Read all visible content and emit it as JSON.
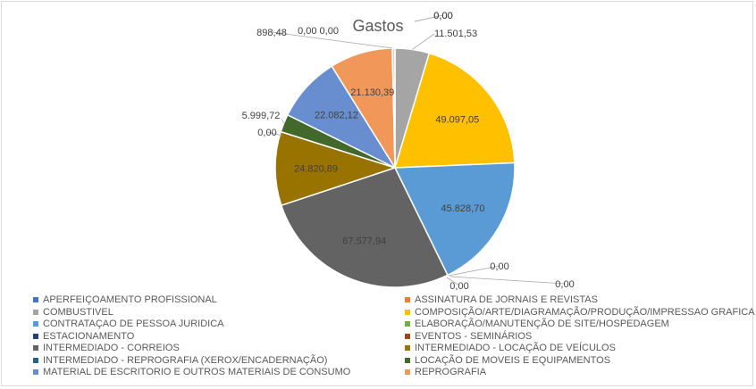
{
  "chart_data": {
    "type": "pie",
    "title": "Gastos",
    "slices": [
      {
        "label": "APERFEIÇOAMENTO PROFISSIONAL",
        "value": 0,
        "display": "0,00",
        "color": "#4472C4"
      },
      {
        "label": "ASSINATURA DE JORNAIS E REVISTAS",
        "value": 0,
        "display": "0,00",
        "color": "#ED7D31"
      },
      {
        "label": "COMBUSTIVEL",
        "value": 11501.53,
        "display": "11.501,53",
        "color": "#A5A5A5"
      },
      {
        "label": "COMPOSIÇÃO/ARTE/DIAGRAMAÇÃO/PRODUÇÃO/IMPRESSAO GRAFICA",
        "value": 49097.05,
        "display": "49.097,05",
        "color": "#FFC000"
      },
      {
        "label": "CONTRATAÇAO DE PESSOA JURIDICA",
        "value": 45828.7,
        "display": "45.828,70",
        "color": "#5B9BD5"
      },
      {
        "label": "ELABORAÇÃO/MANUTENÇÃO DE SITE/HOSPEDAGEM",
        "value": 0,
        "display": "0,00",
        "color": "#70AD47"
      },
      {
        "label": "ESTACIONAMENTO",
        "value": 0,
        "display": "0,00",
        "color": "#264478"
      },
      {
        "label": "EVENTOS - SEMINÁRIOS",
        "value": 0,
        "display": "0,00",
        "color": "#9E480E"
      },
      {
        "label": "INTERMEDIADO - CORREIOS",
        "value": 67577.94,
        "display": "67.577,94",
        "color": "#636363"
      },
      {
        "label": "INTERMEDIADO - LOCAÇÃO DE VEÍCULOS",
        "value": 24820.89,
        "display": "24.820,89",
        "color": "#997300"
      },
      {
        "label": "INTERMEDIADO - REPROGRAFIA (XEROX/ENCADERNAÇÃO)",
        "value": 0,
        "display": "0,00",
        "color": "#255E91"
      },
      {
        "label": "LOCAÇÃO DE MOVEIS E EQUIPAMENTOS",
        "value": 5999.72,
        "display": "5.999,72",
        "color": "#43682B"
      },
      {
        "label": "MATERIAL DE ESCRITORIO E OUTROS MATERIAIS DE CONSUMO",
        "value": 22082.12,
        "display": "22.082,12",
        "color": "#698ED0"
      },
      {
        "label": "REPROGRAFIA",
        "value": 21130.39,
        "display": "21.130,39",
        "color": "#F1975A"
      },
      {
        "label": "",
        "value": 898.48,
        "display": "898,48",
        "color": "#D6D6D6"
      }
    ],
    "legend_position": "bottom"
  }
}
